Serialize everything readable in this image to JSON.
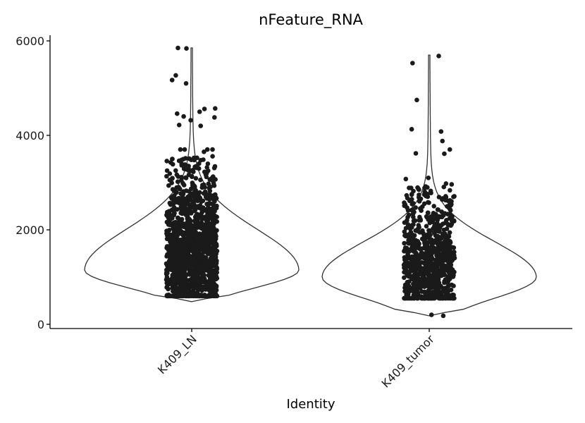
{
  "chart_data": {
    "type": "violin",
    "title": "nFeature_RNA",
    "xlabel": "Identity",
    "ylabel": "",
    "ylim": [
      -100,
      6150
    ],
    "yticks": [
      0,
      2000,
      4000,
      6000
    ],
    "grid": false,
    "legend": "none",
    "categories": [
      "K409_LN",
      "K409_tumor"
    ],
    "series": [
      {
        "category": "K409_LN",
        "min": 480,
        "max": 5850,
        "dense_range": [
          600,
          3400
        ],
        "widest_at": 1150,
        "outliers": [
          5850,
          5840,
          5270,
          5170,
          5100,
          4570,
          4560,
          4500,
          4460,
          4400,
          4380,
          4320,
          4220,
          4200
        ]
      },
      {
        "category": "K409_tumor",
        "min": 180,
        "max": 5700,
        "dense_range": [
          550,
          2800
        ],
        "widest_at": 1000,
        "outliers": [
          5680,
          5530,
          4750,
          4130,
          4080,
          3880,
          3700,
          3620,
          3610,
          200,
          180
        ]
      }
    ],
    "colors": {
      "points": "#1a1a1a",
      "violin_outline": "#333333",
      "axis": "#000000"
    }
  }
}
